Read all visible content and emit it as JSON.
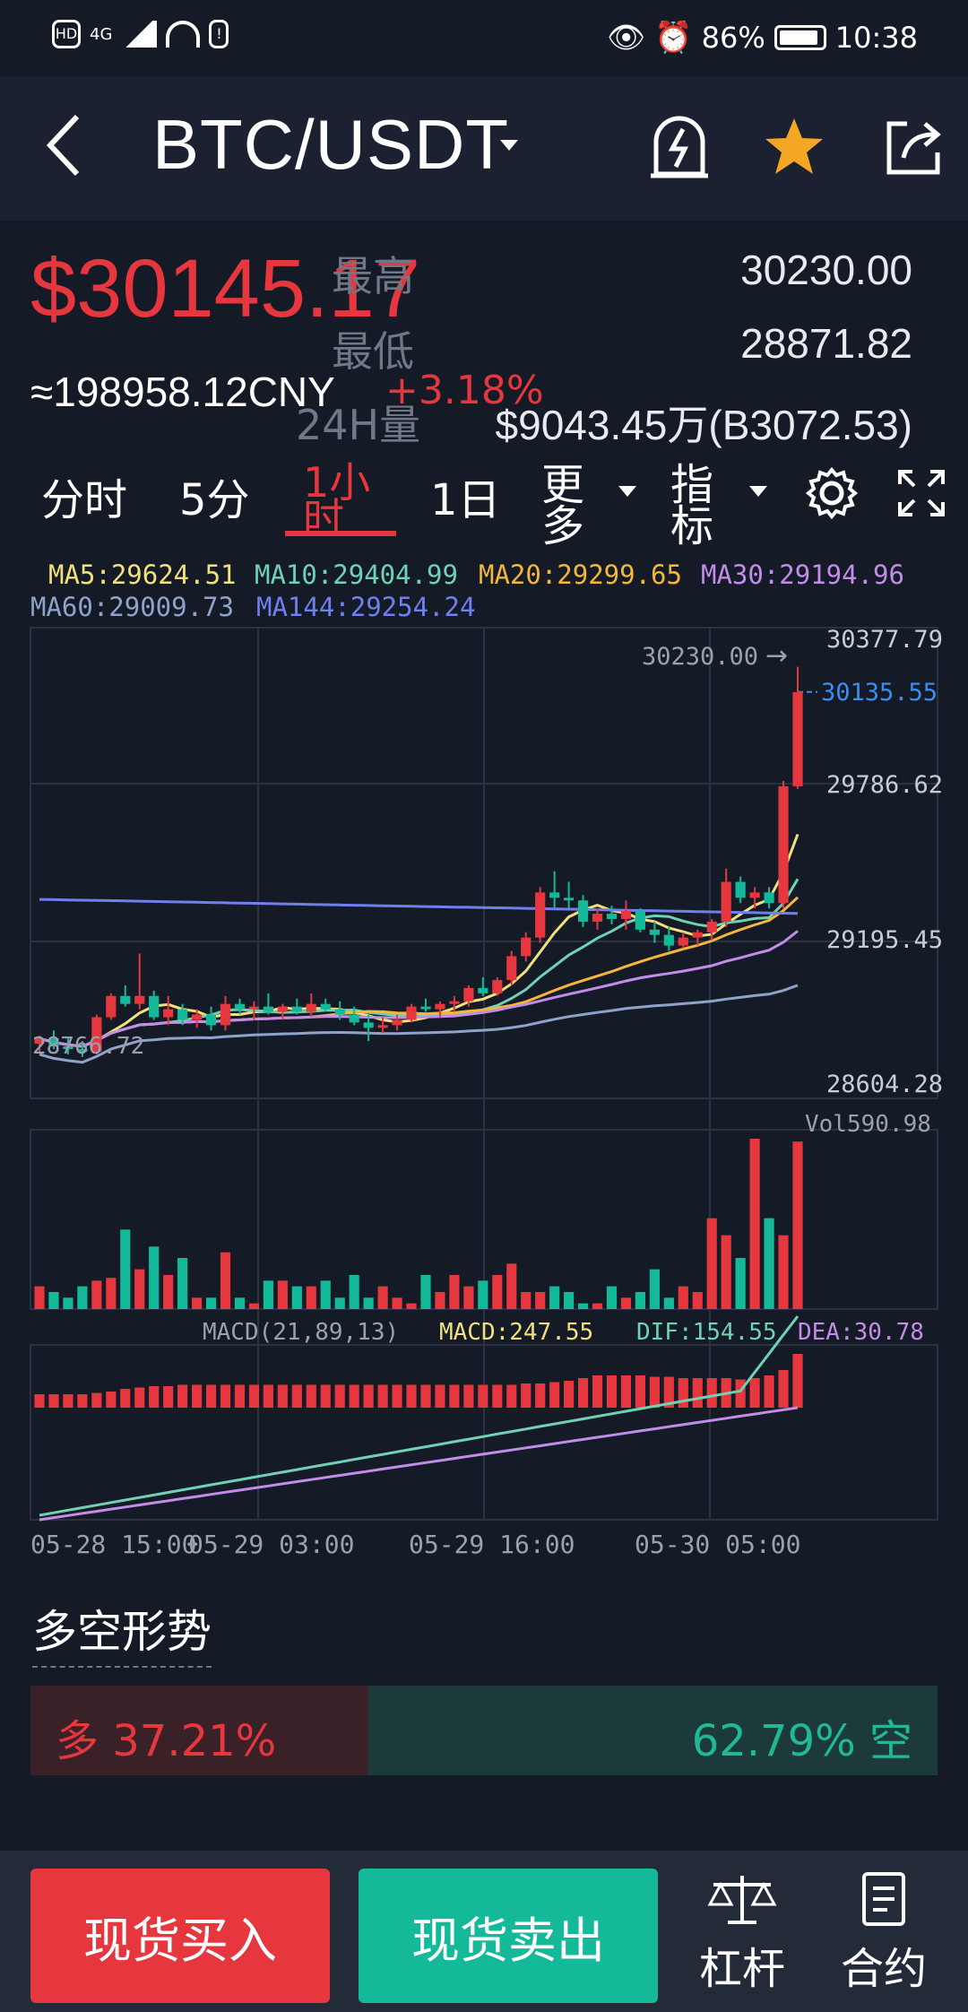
{
  "status_bar": {
    "left_badges": [
      "HD",
      "4G"
    ],
    "battery": "86%",
    "time": "10:38"
  },
  "header": {
    "pair": "BTC/USDT"
  },
  "price": {
    "last": "$30145.17",
    "cny": "≈198958.12CNY",
    "change": "+3.18%",
    "high_label": "最高",
    "high": "30230.00",
    "low_label": "最低",
    "low": "28871.82",
    "vol_label": "24H量",
    "vol": "$9043.45万(B3072.53)"
  },
  "tabs": {
    "items": [
      "分时",
      "5分",
      "1小时",
      "1日",
      "更多",
      "指标"
    ],
    "active": "1小时"
  },
  "ma": {
    "ma5": "MA5:29624.51",
    "ma10": "MA10:29404.99",
    "ma20": "MA20:29299.65",
    "ma30": "MA30:29194.96",
    "ma60": "MA60:29009.73",
    "ma144": "MA144:29254.24"
  },
  "colors": {
    "up": "#e5373d",
    "down": "#14b99a",
    "ma5": "#f1e07c",
    "ma10": "#6fd2b4",
    "ma20": "#f4b73a",
    "ma30": "#c38ce8",
    "ma60": "#8fa2c9",
    "ma144": "#6f7ff0"
  },
  "chart_data": {
    "type": "candlestick",
    "y_axis_labels": [
      "30377.79",
      "29786.62",
      "29195.45",
      "28604.28"
    ],
    "ylim": [
      28604.28,
      30377.79
    ],
    "max_marker": "30230.00",
    "min_marker": "28766.72",
    "current_price_label": "30135.55",
    "x_labels": [
      "05-28 15:00",
      "05-29 03:00",
      "05-29 16:00",
      "05-30 05:00"
    ],
    "volume_label": "Vol590.98",
    "macd_label": "MACD(21,89,13)",
    "macd_value": "MACD:247.55",
    "dif_value": "DIF:154.55",
    "dea_value": "DEA:30.78",
    "candles": [
      [
        28810,
        28840,
        28780,
        28830
      ],
      [
        28830,
        28860,
        28790,
        28800
      ],
      [
        28800,
        28830,
        28770,
        28790
      ],
      [
        28790,
        28820,
        28760,
        28780
      ],
      [
        28780,
        28920,
        28770,
        28910
      ],
      [
        28910,
        29000,
        28900,
        28990
      ],
      [
        28990,
        29030,
        28950,
        28960
      ],
      [
        28960,
        29150,
        28940,
        28990
      ],
      [
        28990,
        29010,
        28900,
        28910
      ],
      [
        28910,
        28990,
        28880,
        28940
      ],
      [
        28940,
        28960,
        28880,
        28900
      ],
      [
        28900,
        28940,
        28870,
        28920
      ],
      [
        28920,
        28950,
        28860,
        28880
      ],
      [
        28880,
        28990,
        28860,
        28960
      ],
      [
        28960,
        28980,
        28920,
        28940
      ],
      [
        28940,
        28970,
        28900,
        28950
      ],
      [
        28950,
        29000,
        28920,
        28930
      ],
      [
        28930,
        28960,
        28900,
        28950
      ],
      [
        28950,
        28980,
        28920,
        28930
      ],
      [
        28930,
        29000,
        28910,
        28960
      ],
      [
        28960,
        28980,
        28930,
        28940
      ],
      [
        28940,
        28970,
        28900,
        28920
      ],
      [
        28920,
        28950,
        28880,
        28890
      ],
      [
        28890,
        28920,
        28820,
        28870
      ],
      [
        28870,
        28910,
        28850,
        28880
      ],
      [
        28880,
        28920,
        28860,
        28900
      ],
      [
        28900,
        28960,
        28890,
        28950
      ],
      [
        28950,
        28980,
        28930,
        28940
      ],
      [
        28940,
        28970,
        28910,
        28960
      ],
      [
        28960,
        28990,
        28930,
        28970
      ],
      [
        28970,
        29030,
        28950,
        29020
      ],
      [
        29020,
        29060,
        28990,
        29000
      ],
      [
        29000,
        29060,
        28990,
        29050
      ],
      [
        29050,
        29160,
        29030,
        29140
      ],
      [
        29140,
        29230,
        29120,
        29210
      ],
      [
        29210,
        29400,
        29190,
        29380
      ],
      [
        29380,
        29460,
        29320,
        29360
      ],
      [
        29360,
        29420,
        29320,
        29350
      ],
      [
        29350,
        29370,
        29250,
        29270
      ],
      [
        29270,
        29320,
        29240,
        29300
      ],
      [
        29300,
        29330,
        29260,
        29280
      ],
      [
        29280,
        29350,
        29240,
        29310
      ],
      [
        29310,
        29320,
        29230,
        29240
      ],
      [
        29240,
        29270,
        29190,
        29220
      ],
      [
        29220,
        29250,
        29160,
        29180
      ],
      [
        29180,
        29230,
        29170,
        29210
      ],
      [
        29210,
        29240,
        29180,
        29230
      ],
      [
        29230,
        29280,
        29200,
        29270
      ],
      [
        29270,
        29470,
        29250,
        29420
      ],
      [
        29420,
        29440,
        29340,
        29360
      ],
      [
        29360,
        29400,
        29320,
        29380
      ],
      [
        29380,
        29400,
        29320,
        29340
      ],
      [
        29340,
        29800,
        29320,
        29780
      ],
      [
        29780,
        30230,
        29770,
        30135
      ]
    ],
    "volumes": [
      8,
      6,
      4,
      8,
      10,
      11,
      28,
      14,
      22,
      12,
      18,
      4,
      4,
      20,
      4,
      2,
      10,
      10,
      8,
      8,
      10,
      4,
      12,
      4,
      8,
      4,
      2,
      12,
      6,
      12,
      8,
      10,
      12,
      16,
      6,
      6,
      8,
      6,
      2,
      2,
      8,
      4,
      6,
      14,
      4,
      8,
      6,
      32,
      26,
      18,
      60,
      32,
      26,
      59
    ],
    "macd_hist": [
      10,
      10,
      10,
      10,
      11,
      12,
      14,
      15,
      16,
      16,
      17,
      17,
      17,
      17,
      17,
      17,
      17,
      17,
      17,
      17,
      17,
      17,
      17,
      17,
      17,
      17,
      17,
      17,
      17,
      17,
      17,
      17,
      17,
      17,
      18,
      18,
      19,
      20,
      22,
      24,
      24,
      24,
      24,
      23,
      23,
      22,
      22,
      22,
      22,
      21,
      22,
      24,
      28,
      40
    ]
  },
  "sentiment": {
    "title": "多空形势",
    "long_text": "多 37.21%",
    "short_text": "62.79% 空",
    "long_ratio": 0.3721
  },
  "bottom": {
    "buy": "现货买入",
    "sell": "现货卖出",
    "margin": "杠杆",
    "contract": "合约"
  }
}
